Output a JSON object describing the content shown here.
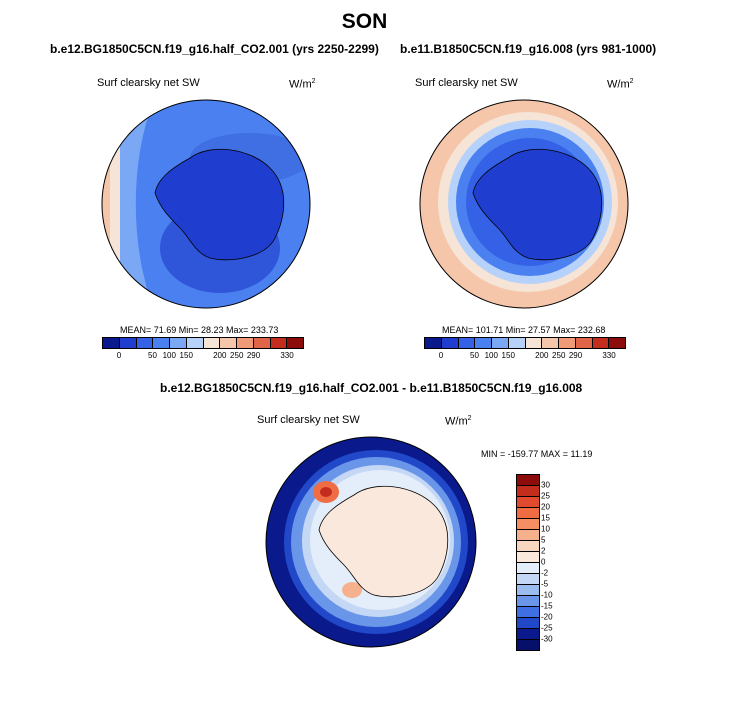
{
  "title": "SON",
  "panels": [
    {
      "title": "b.e12.BG1850C5CN.f19_g16.half_CO2.001 (yrs 2250-2299)",
      "subtitle": "Surf clearsky net SW",
      "units": "W/m",
      "units_sup": "2",
      "stats": "MEAN= 71.69  Min= 28.23  Max= 233.73",
      "colorbar_labels": [
        "0",
        "50",
        "100",
        "150",
        "200",
        "250",
        "290",
        "330"
      ]
    },
    {
      "title": "b.e11.B1850C5CN.f19_g16.008 (yrs 981-1000)",
      "subtitle": "Surf clearsky net SW",
      "units": "W/m",
      "units_sup": "2",
      "stats": "MEAN= 101.71  Min= 27.57  Max= 232.68",
      "colorbar_labels": [
        "0",
        "50",
        "100",
        "150",
        "200",
        "250",
        "290",
        "330"
      ]
    },
    {
      "title": "b.e12.BG1850C5CN.f19_g16.half_CO2.001 - b.e11.B1850C5CN.f19_g16.008",
      "subtitle": "Surf clearsky net SW",
      "units": "W/m",
      "units_sup": "2",
      "stats": "MIN = -159.77 MAX =  11.19",
      "colorbar_labels": [
        "30",
        "25",
        "20",
        "15",
        "10",
        "5",
        "2",
        "0",
        "-2",
        "-5",
        "-10",
        "-15",
        "-20",
        "-25",
        "-30"
      ]
    }
  ],
  "colors": {
    "seq": [
      "#0a1a8c",
      "#1f3ed0",
      "#3461e6",
      "#4a80f0",
      "#7aa8f5",
      "#b6d1fa",
      "#f6e4d6",
      "#f5c6aa",
      "#ef9b78",
      "#e06548",
      "#c22d1e",
      "#8c0c0c"
    ],
    "div": [
      "#8c0c0c",
      "#c22d1e",
      "#e04a2e",
      "#f06c42",
      "#f58e62",
      "#f5b18e",
      "#f7d6bf",
      "#fbe8dc",
      "#e4eefa",
      "#c4d8f5",
      "#9bbcef",
      "#6a96ea",
      "#3f6fe2",
      "#2148c8",
      "#0a1a8c"
    ]
  }
}
